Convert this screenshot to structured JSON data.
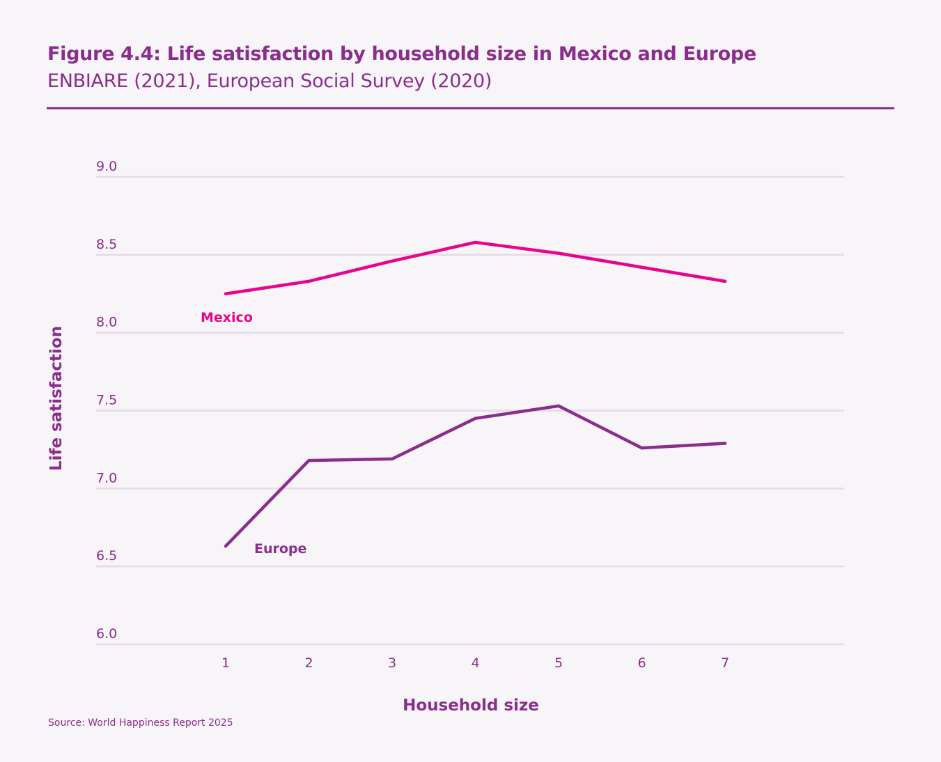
{
  "title": "Figure 4.4: Life satisfaction by household size in Mexico and Europe",
  "subtitle": "ENBIARE (2021), European Social Survey (2020)",
  "source": "Source: World Happiness Report 2025",
  "colors": {
    "background": "#f8f5f9",
    "accent": "#8a2d8c",
    "mexico": "#e6058c",
    "europe": "#8a2d8c",
    "grid": "#e6d9e8"
  },
  "chart_data": {
    "type": "line",
    "xlabel": "Household size",
    "ylabel": "Life satisfaction",
    "x": [
      1,
      2,
      3,
      4,
      5,
      6,
      7
    ],
    "xticks": [
      "1",
      "2",
      "3",
      "4",
      "5",
      "6",
      "7"
    ],
    "yticks": [
      "6.0",
      "6.5",
      "7.0",
      "7.5",
      "8.0",
      "8.5",
      "9.0"
    ],
    "ylim": [
      6.0,
      9.0
    ],
    "grid": true,
    "series": [
      {
        "name": "Mexico",
        "color": "#e6058c",
        "values": [
          8.25,
          8.33,
          8.46,
          8.58,
          8.51,
          8.42,
          8.33
        ]
      },
      {
        "name": "Europe",
        "color": "#8a2d8c",
        "values": [
          6.63,
          7.18,
          7.19,
          7.45,
          7.53,
          7.26,
          7.29
        ]
      }
    ]
  }
}
